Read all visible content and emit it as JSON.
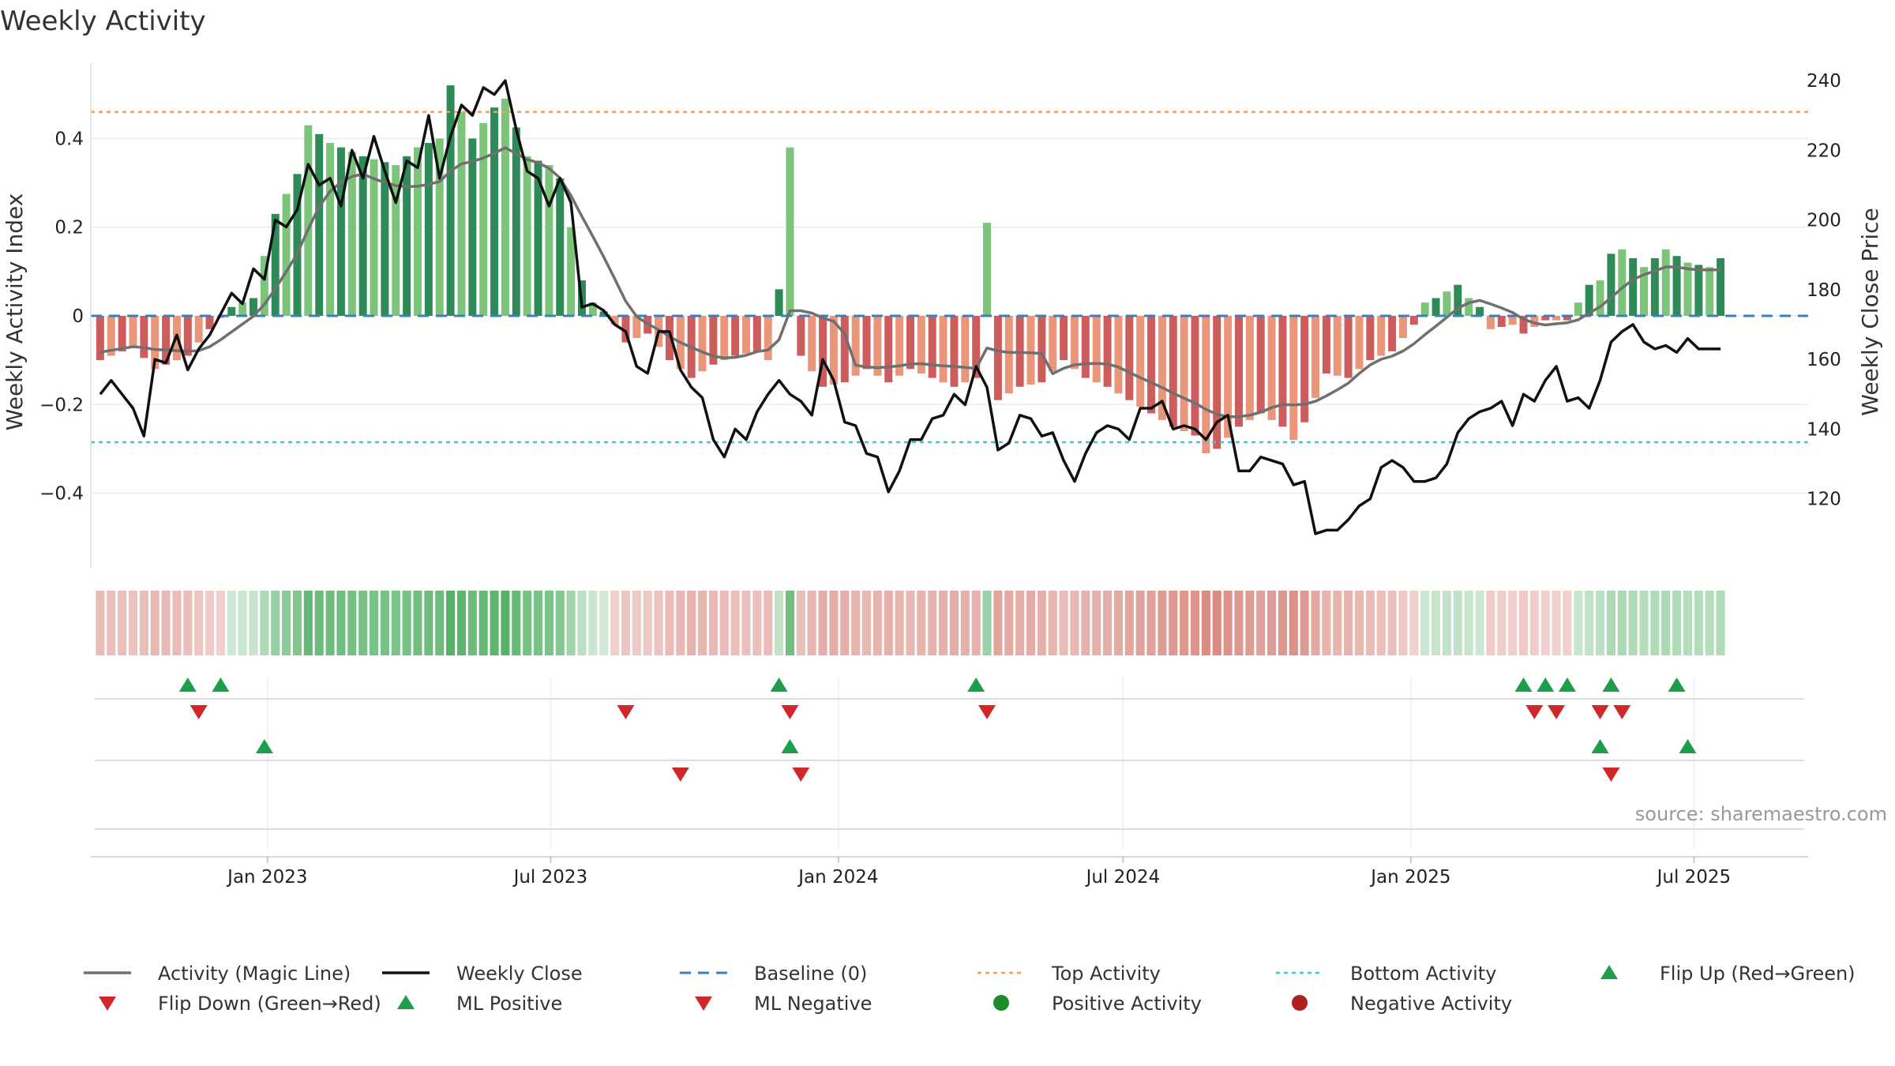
{
  "chart_data": {
    "type": "bar",
    "title": "Weekly Activity",
    "ylabel_left": "Weekly Activity Index",
    "ylabel_right": "Weekly Close Price",
    "source": "source: sharemaestro.com",
    "x_range": [
      "2022-09-10",
      "2025-09-12"
    ],
    "x_ticks": [
      {
        "date": "2023-01-01",
        "label": "Jan 2023"
      },
      {
        "date": "2023-07-01",
        "label": "Jul 2023"
      },
      {
        "date": "2024-01-01",
        "label": "Jan 2024"
      },
      {
        "date": "2024-07-01",
        "label": "Jul 2024"
      },
      {
        "date": "2025-01-01",
        "label": "Jan 2025"
      },
      {
        "date": "2025-07-01",
        "label": "Jul 2025"
      }
    ],
    "left_axis": {
      "ylim": [
        -0.57,
        0.57
      ],
      "ticks": [
        {
          "v": 0.4,
          "label": "0.4"
        },
        {
          "v": 0.2,
          "label": "0.2"
        },
        {
          "v": 0,
          "label": "0"
        },
        {
          "v": -0.2,
          "label": "−0.2"
        },
        {
          "v": -0.4,
          "label": "−0.4"
        }
      ]
    },
    "right_axis": {
      "ylim": [
        100,
        245
      ],
      "ticks": [
        {
          "v": 240,
          "label": "240"
        },
        {
          "v": 220,
          "label": "220"
        },
        {
          "v": 200,
          "label": "200"
        },
        {
          "v": 180,
          "label": "180"
        },
        {
          "v": 160,
          "label": "160"
        },
        {
          "v": 140,
          "label": "140"
        },
        {
          "v": 120,
          "label": "120"
        }
      ]
    },
    "top_activity": 0.46,
    "bottom_activity": -0.285,
    "start_date": "2022-09-16",
    "activity_anchors": [
      [
        0,
        -0.1
      ],
      [
        3,
        -0.07
      ],
      [
        5,
        -0.12
      ],
      [
        8,
        -0.09
      ],
      [
        10,
        -0.03
      ],
      [
        12,
        0.02
      ],
      [
        14,
        0.04
      ],
      [
        16,
        0.23
      ],
      [
        18,
        0.32
      ],
      [
        19,
        0.43
      ],
      [
        21,
        0.39
      ],
      [
        24,
        0.36
      ],
      [
        27,
        0.34
      ],
      [
        29,
        0.38
      ],
      [
        31,
        0.4
      ],
      [
        32,
        0.52
      ],
      [
        34,
        0.4
      ],
      [
        36,
        0.47
      ],
      [
        37,
        0.49
      ],
      [
        39,
        0.36
      ],
      [
        41,
        0.34
      ],
      [
        42,
        0.31
      ],
      [
        43,
        0.2
      ],
      [
        44,
        0.08
      ],
      [
        45,
        0.03
      ],
      [
        46,
        0.01
      ],
      [
        47,
        -0.02
      ],
      [
        48,
        -0.06
      ],
      [
        50,
        -0.04
      ],
      [
        52,
        -0.1
      ],
      [
        54,
        -0.14
      ],
      [
        56,
        -0.11
      ],
      [
        58,
        -0.09
      ],
      [
        60,
        -0.08
      ],
      [
        61,
        -0.1
      ],
      [
        62,
        0.06
      ],
      [
        63,
        0.38
      ],
      [
        64,
        -0.09
      ],
      [
        66,
        -0.16
      ],
      [
        68,
        -0.15
      ],
      [
        70,
        -0.12
      ],
      [
        72,
        -0.15
      ],
      [
        74,
        -0.12
      ],
      [
        76,
        -0.14
      ],
      [
        78,
        -0.16
      ],
      [
        80,
        -0.14
      ],
      [
        81,
        0.21
      ],
      [
        82,
        -0.19
      ],
      [
        84,
        -0.16
      ],
      [
        86,
        -0.15
      ],
      [
        88,
        -0.1
      ],
      [
        90,
        -0.14
      ],
      [
        92,
        -0.16
      ],
      [
        94,
        -0.19
      ],
      [
        96,
        -0.22
      ],
      [
        98,
        -0.25
      ],
      [
        100,
        -0.27
      ],
      [
        101,
        -0.31
      ],
      [
        102,
        -0.3
      ],
      [
        104,
        -0.25
      ],
      [
        106,
        -0.22
      ],
      [
        108,
        -0.25
      ],
      [
        109,
        -0.28
      ],
      [
        110,
        -0.24
      ],
      [
        112,
        -0.13
      ],
      [
        114,
        -0.14
      ],
      [
        116,
        -0.1
      ],
      [
        118,
        -0.08
      ],
      [
        120,
        -0.02
      ],
      [
        121,
        0.03
      ],
      [
        122,
        0.04
      ],
      [
        124,
        0.07
      ],
      [
        125,
        0.04
      ],
      [
        126,
        0.02
      ],
      [
        127,
        -0.03
      ],
      [
        129,
        -0.02
      ],
      [
        130,
        -0.04
      ],
      [
        132,
        -0.01
      ],
      [
        134,
        -0.01
      ],
      [
        136,
        0.07
      ],
      [
        137,
        0.08
      ],
      [
        138,
        0.14
      ],
      [
        139,
        0.15
      ],
      [
        141,
        0.11
      ],
      [
        143,
        0.15
      ],
      [
        145,
        0.12
      ],
      [
        147,
        0.11
      ],
      [
        148,
        0.13
      ]
    ],
    "close_anchors": [
      [
        0,
        150
      ],
      [
        1,
        154
      ],
      [
        3,
        146
      ],
      [
        4,
        138
      ],
      [
        5,
        160
      ],
      [
        6,
        159
      ],
      [
        7,
        167
      ],
      [
        8,
        157
      ],
      [
        9,
        163
      ],
      [
        10,
        167
      ],
      [
        11,
        173
      ],
      [
        12,
        179
      ],
      [
        13,
        176
      ],
      [
        14,
        186
      ],
      [
        15,
        183
      ],
      [
        16,
        200
      ],
      [
        17,
        198
      ],
      [
        18,
        203
      ],
      [
        19,
        216
      ],
      [
        20,
        210
      ],
      [
        21,
        212
      ],
      [
        22,
        204
      ],
      [
        23,
        220
      ],
      [
        24,
        212
      ],
      [
        25,
        224
      ],
      [
        26,
        214
      ],
      [
        27,
        205
      ],
      [
        28,
        217
      ],
      [
        29,
        215
      ],
      [
        30,
        230
      ],
      [
        31,
        212
      ],
      [
        32,
        224
      ],
      [
        33,
        233
      ],
      [
        34,
        230
      ],
      [
        35,
        238
      ],
      [
        36,
        236
      ],
      [
        37,
        240
      ],
      [
        38,
        226
      ],
      [
        39,
        214
      ],
      [
        40,
        212
      ],
      [
        41,
        204
      ],
      [
        42,
        212
      ],
      [
        43,
        205
      ],
      [
        44,
        175
      ],
      [
        45,
        176
      ],
      [
        46,
        174
      ],
      [
        47,
        170
      ],
      [
        48,
        168
      ],
      [
        49,
        158
      ],
      [
        50,
        156
      ],
      [
        51,
        168
      ],
      [
        52,
        168
      ],
      [
        53,
        157
      ],
      [
        54,
        152
      ],
      [
        55,
        149
      ],
      [
        56,
        137
      ],
      [
        57,
        132
      ],
      [
        58,
        140
      ],
      [
        59,
        137
      ],
      [
        60,
        145
      ],
      [
        61,
        150
      ],
      [
        62,
        154
      ],
      [
        63,
        150
      ],
      [
        64,
        148
      ],
      [
        65,
        144
      ],
      [
        66,
        160
      ],
      [
        67,
        154
      ],
      [
        68,
        142
      ],
      [
        69,
        141
      ],
      [
        70,
        133
      ],
      [
        71,
        132
      ],
      [
        72,
        122
      ],
      [
        73,
        128
      ],
      [
        74,
        137
      ],
      [
        75,
        137
      ],
      [
        76,
        143
      ],
      [
        77,
        144
      ],
      [
        78,
        150
      ],
      [
        79,
        147
      ],
      [
        80,
        158
      ],
      [
        81,
        152
      ],
      [
        82,
        134
      ],
      [
        83,
        136
      ],
      [
        84,
        144
      ],
      [
        85,
        143
      ],
      [
        86,
        138
      ],
      [
        87,
        139
      ],
      [
        88,
        131
      ],
      [
        89,
        125
      ],
      [
        90,
        133
      ],
      [
        91,
        139
      ],
      [
        92,
        141
      ],
      [
        93,
        140
      ],
      [
        94,
        137
      ],
      [
        95,
        146
      ],
      [
        96,
        146
      ],
      [
        97,
        148
      ],
      [
        98,
        140
      ],
      [
        99,
        141
      ],
      [
        100,
        140
      ],
      [
        101,
        137
      ],
      [
        102,
        142
      ],
      [
        103,
        144
      ],
      [
        104,
        128
      ],
      [
        105,
        128
      ],
      [
        106,
        132
      ],
      [
        107,
        131
      ],
      [
        108,
        130
      ],
      [
        109,
        124
      ],
      [
        110,
        125
      ],
      [
        111,
        110
      ],
      [
        112,
        111
      ],
      [
        113,
        111
      ],
      [
        114,
        114
      ],
      [
        115,
        118
      ],
      [
        116,
        120
      ],
      [
        117,
        129
      ],
      [
        118,
        131
      ],
      [
        119,
        129
      ],
      [
        120,
        125
      ],
      [
        121,
        125
      ],
      [
        122,
        126
      ],
      [
        123,
        130
      ],
      [
        124,
        139
      ],
      [
        125,
        143
      ],
      [
        126,
        145
      ],
      [
        127,
        146
      ],
      [
        128,
        148
      ],
      [
        129,
        141
      ],
      [
        130,
        150
      ],
      [
        131,
        148
      ],
      [
        132,
        154
      ],
      [
        133,
        158
      ],
      [
        134,
        148
      ],
      [
        135,
        149
      ],
      [
        136,
        146
      ],
      [
        137,
        154
      ],
      [
        138,
        165
      ],
      [
        139,
        168
      ],
      [
        140,
        170
      ],
      [
        141,
        165
      ],
      [
        142,
        163
      ],
      [
        143,
        164
      ],
      [
        144,
        162
      ],
      [
        145,
        166
      ],
      [
        146,
        163
      ]
    ],
    "series": [
      {
        "name": "Activity (Magic Line)",
        "color": "#707070"
      },
      {
        "name": "Weekly Close",
        "color": "#111111"
      },
      {
        "name": "Baseline (0)",
        "color": "#3a7fbf"
      },
      {
        "name": "Top Activity",
        "color": "#f0a060"
      },
      {
        "name": "Bottom Activity",
        "color": "#3ac8d2"
      }
    ],
    "markers": {
      "flip_up": [
        "2022-11-11",
        "2022-12-02",
        "2023-11-24",
        "2024-03-29",
        "2025-03-14",
        "2025-03-28",
        "2025-04-11",
        "2025-05-09",
        "2025-06-20"
      ],
      "flip_down": [
        "2022-11-18",
        "2023-08-18",
        "2023-12-01",
        "2024-04-05",
        "2025-03-21",
        "2025-04-04",
        "2025-05-02",
        "2025-05-16"
      ],
      "ml_positive": [
        "2022-12-30",
        "2023-12-01",
        "2025-05-02",
        "2025-06-27"
      ],
      "ml_negative": [
        "2023-09-22",
        "2023-12-08",
        "2025-05-09"
      ]
    },
    "legend": [
      {
        "label": "Activity (Magic Line)",
        "kind": "line",
        "color": "#707070"
      },
      {
        "label": "Weekly Close",
        "kind": "line",
        "color": "#111111"
      },
      {
        "label": "Baseline (0)",
        "kind": "dash",
        "color": "#3a7fbf"
      },
      {
        "label": "Top Activity",
        "kind": "dot",
        "color": "#f0a060"
      },
      {
        "label": "Bottom Activity",
        "kind": "dot",
        "color": "#3ac8d2"
      },
      {
        "label": "Flip Up (Red→Green)",
        "kind": "tri-up",
        "color": "#1e9e4a"
      },
      {
        "label": "Flip Down (Green→Red)",
        "kind": "tri-down",
        "color": "#d02828"
      },
      {
        "label": "ML Positive",
        "kind": "tri-up",
        "color": "#1e9e4a"
      },
      {
        "label": "ML Negative",
        "kind": "tri-down",
        "color": "#d02828"
      },
      {
        "label": "Positive Activity",
        "kind": "circle",
        "color": "#1e8a2e"
      },
      {
        "label": "Negative Activity",
        "kind": "circle",
        "color": "#b02020"
      }
    ]
  }
}
